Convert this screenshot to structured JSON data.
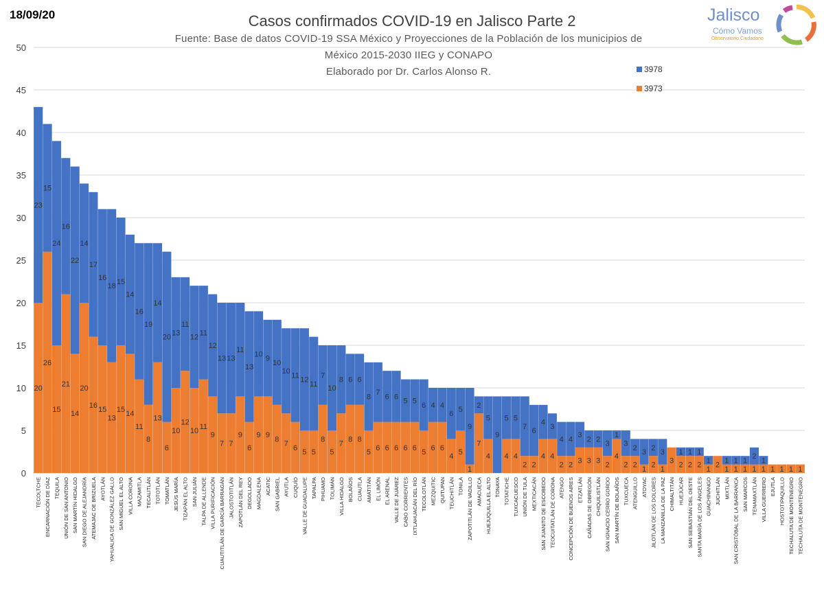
{
  "header": {
    "date": "18/09/20",
    "title": "Casos confirmados COVID-19 en Jalisco Parte 2",
    "subtitle_line1": "Fuente: Base de datos COVID-19 SSA México y Proyecciones de la Población de los municipios de",
    "subtitle_line2": "México 2015-2030 IIEG y CONAPO",
    "subtitle_line3": "Elaborado por Dr. Carlos Alonso R."
  },
  "logo": {
    "name": "Jalisco",
    "subname": "Cómo Vamos",
    "tagline": "Observatorio Ciudadano"
  },
  "chart_data": {
    "type": "bar",
    "stacked": true,
    "ylim": [
      0,
      50
    ],
    "yticks": [
      0,
      5,
      10,
      15,
      20,
      25,
      30,
      35,
      40,
      45,
      50
    ],
    "legend": [
      {
        "name": "3978",
        "color": "#4472c4"
      },
      {
        "name": "3973",
        "color": "#ed7d31"
      }
    ],
    "categories": [
      "TECOLTCHE",
      "ENCARNACIÓN DE DÍAZ",
      "TEQUILA",
      "UNIÓN DE SAN ANTONIO",
      "SAN MARTÍN HIDALGO",
      "SAN DIEGO DE ALEJANDRÍA",
      "ATEMAJAC DE BRIZUELA",
      "AYOTLÁN",
      "YAHUALICA DE GONZÁLEZ GALLO",
      "SAN MIGUEL EL ALTO",
      "VILLA CORONA",
      "MAZAMITLA",
      "TECALITLÁN",
      "TOTOTLÁN",
      "TOMATLÁN",
      "JESÚS MARÍA",
      "TIZAPÁN EL ALTO",
      "SAN JULIÁN",
      "TALPA DE ALLENDE",
      "VILLA PURIFICACIÓN",
      "CUAUTITLÁN DE GARCÍA BARRAGÁN",
      "JALOSTOTITLÁN",
      "ZAPOTLÁN DEL REY",
      "DEGOLLADO",
      "MAGDALENA",
      "ACATIC",
      "SAN GABRIEL",
      "AYUTLA",
      "CUQUÍO",
      "VALLE DE GUADALUPE",
      "TAPALPA",
      "PIHUAMO",
      "TOLIMÁN",
      "VILLA HIDALGO",
      "BOLAÑOS",
      "CUAUTLA",
      "AMATITÁN",
      "EL LIMÓN",
      "EL ARENAL",
      "VALLE DE JUÁREZ",
      "CABO CORRIENTES",
      "IXTLAHUACÁN DEL RÍO",
      "TECOLOTLÁN",
      "MEZQUITIC",
      "QUITUPAN",
      "TEUCHITLÁN",
      "TONILA",
      "ZAPOTITLÁN DE VADILLO",
      "AMACUECA",
      "HUEJUQUILLA EL ALTO",
      "TONAYA",
      "TOTATICHE",
      "TUXCACUESCO",
      "UNIÓN DE TULA",
      "MEXTICACÁN",
      "SAN JUANITO DE ESCOBEDO",
      "TEOCUITATLÁN DE CORONA",
      "ATENGO",
      "CONCEPCIÓN DE BUENOS AIRES",
      "ETZATLÁN",
      "CAÑADAS DE OBREGÓN",
      "CHIQUILISTLÁN",
      "SAN IGNACIO CERRO GORDO",
      "SAN MARTÍN DE BOLAÑOS",
      "TUXCUECA",
      "ATENGUILLO",
      "ATOYAC",
      "JILOTLÁN DE LOS DOLORES",
      "LA MANZANILLA DE LA PAZ",
      "CHIMALTITÁN",
      "HUEJÚCAR",
      "SAN SEBASTIÁN DEL OESTE",
      "SANTA MARÍA DE LOS ÁNGELES",
      "GUACHINANGO",
      "JUCHITLÁN",
      "MIXTLÁN",
      "SAN CRISTÓBAL DE LA BARRANCA",
      "SAN MARCOS",
      "TENAMAXTLÁN",
      "VILLA GUERRERO",
      "EJUTLA",
      "HOSTOTIPAQUILLO",
      "TECHALUTA DE MONTENEGRO",
      "TECHALUTA DE MONTENEGRO"
    ],
    "series": [
      {
        "name": "3973",
        "values": [
          20,
          26,
          15,
          21,
          14,
          20,
          16,
          15,
          13,
          15,
          14,
          11,
          8,
          13,
          6,
          10,
          12,
          10,
          11,
          9,
          7,
          7,
          9,
          6,
          9,
          9,
          8,
          7,
          6,
          5,
          5,
          8,
          5,
          7,
          8,
          8,
          5,
          6,
          6,
          6,
          6,
          6,
          5,
          6,
          6,
          4,
          5,
          1,
          7,
          4,
          0,
          4,
          4,
          2,
          2,
          4,
          4,
          2,
          2,
          3,
          3,
          3,
          2,
          4,
          2,
          2,
          1,
          2,
          1,
          3,
          2,
          2,
          2,
          1,
          2,
          1,
          1,
          1,
          1,
          1,
          1,
          1,
          1,
          1
        ]
      },
      {
        "name": "3978",
        "values": [
          23,
          15,
          24,
          16,
          22,
          14,
          17,
          16,
          18,
          15,
          14,
          16,
          19,
          14,
          20,
          13,
          11,
          12,
          11,
          12,
          13,
          13,
          11,
          13,
          10,
          9,
          10,
          10,
          11,
          12,
          11,
          7,
          10,
          8,
          6,
          6,
          8,
          7,
          6,
          6,
          5,
          5,
          6,
          4,
          4,
          6,
          5,
          9,
          2,
          5,
          9,
          5,
          5,
          7,
          6,
          4,
          3,
          4,
          4,
          3,
          2,
          2,
          3,
          1,
          3,
          2,
          3,
          2,
          3,
          0,
          1,
          1,
          1,
          1,
          0,
          1,
          1,
          1,
          2,
          1,
          0,
          0,
          0,
          0
        ]
      }
    ]
  }
}
